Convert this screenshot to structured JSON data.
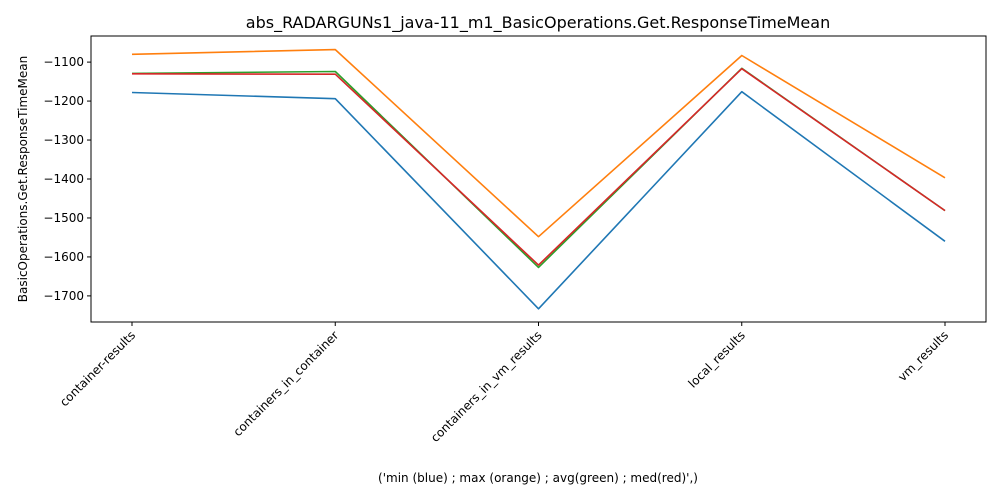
{
  "chart_data": {
    "type": "line",
    "title": "abs_RADARGUNs1_java-11_m1_BasicOperations.Get.ResponseTimeMean",
    "xlabel": "('min (blue) ; max (orange) ; avg(green) ; med(red)',)",
    "ylabel": "BasicOperations.Get.ResponseTimeMean",
    "categories": [
      "container-results",
      "containers_in_container",
      "containers_in_vm_results",
      "local_results",
      "vm_results"
    ],
    "ylim": [
      -1767,
      -1033
    ],
    "yticks": [
      -1700,
      -1600,
      -1500,
      -1400,
      -1300,
      -1200,
      -1100
    ],
    "ytick_labels": [
      "−1700",
      "−1600",
      "−1500",
      "−1400",
      "−1300",
      "−1200",
      "−1100"
    ],
    "grid": false,
    "series": [
      {
        "color": "#1f77b4",
        "values": [
          -1178,
          -1194,
          -1733,
          -1176,
          -1560
        ]
      },
      {
        "color": "#ff7f0e",
        "values": [
          -1080,
          -1068,
          -1548,
          -1083,
          -1397
        ]
      },
      {
        "color": "#2ca02c",
        "values": [
          -1129,
          -1124,
          -1627,
          -1116,
          -1481
        ]
      },
      {
        "color": "#d62728",
        "values": [
          -1130,
          -1131,
          -1621,
          -1117,
          -1481
        ]
      }
    ]
  }
}
